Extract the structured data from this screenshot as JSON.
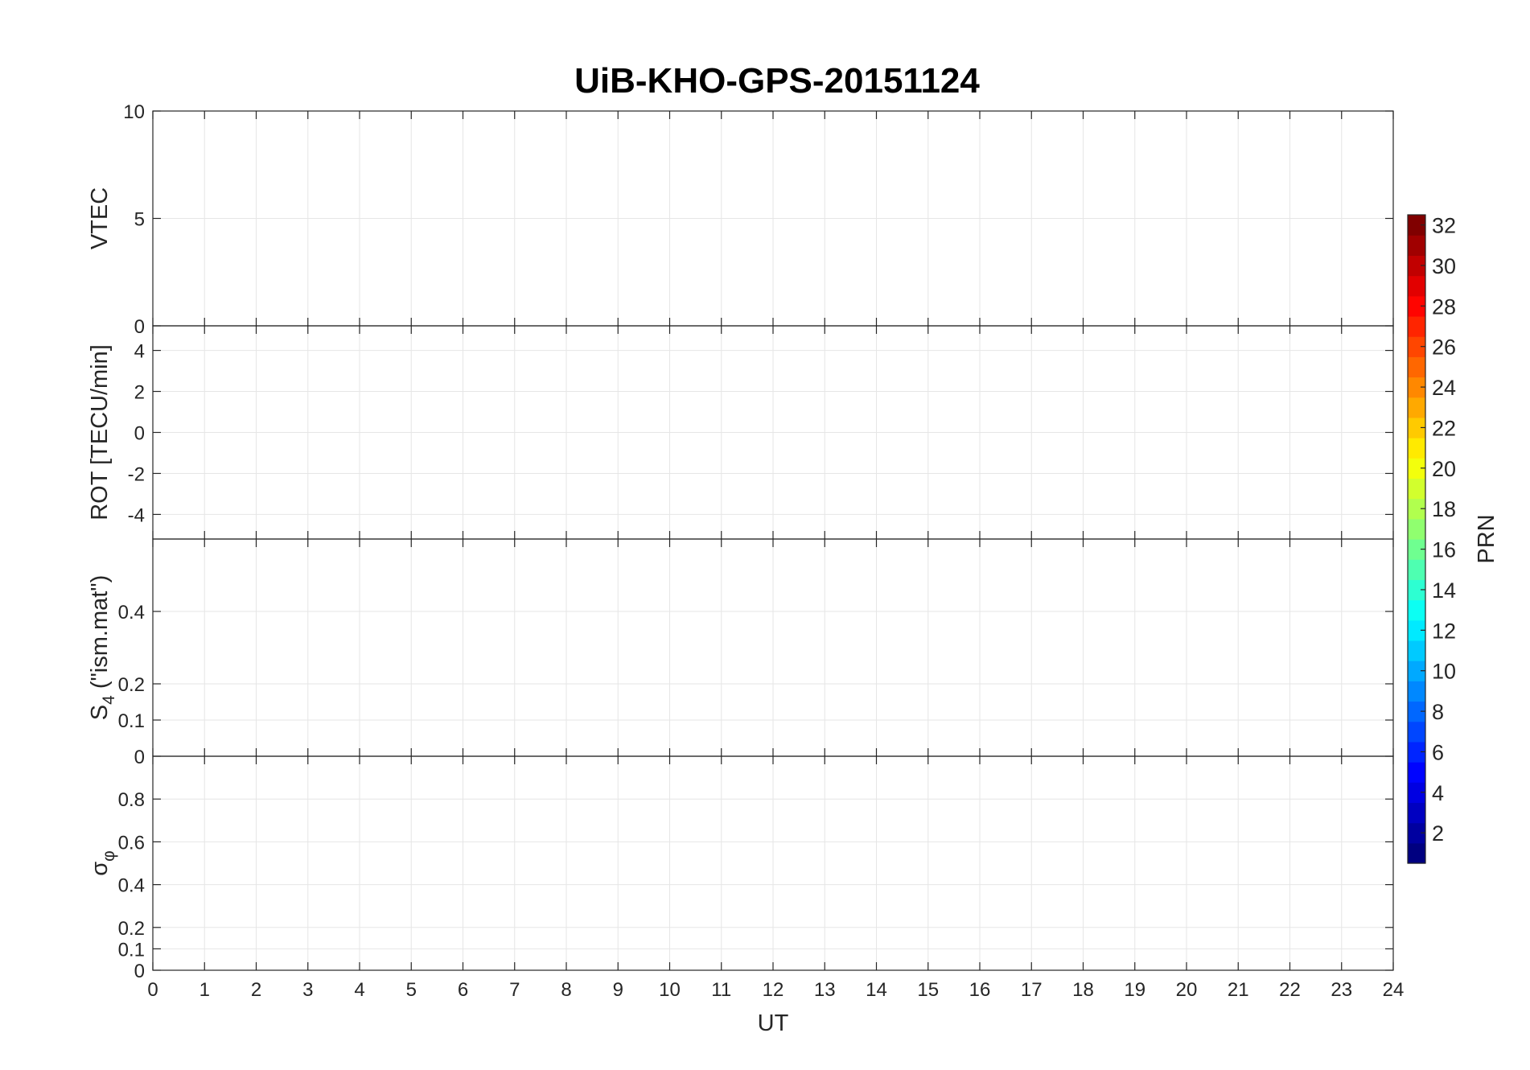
{
  "chart_data": [
    {
      "type": "line",
      "title": "UiB-KHO-GPS-20151124",
      "ylabel": "VTEC",
      "ylim": [
        0,
        10
      ],
      "yticks": [
        0,
        5,
        10
      ],
      "xlim": [
        0,
        24
      ],
      "grid": true
    },
    {
      "type": "line",
      "ylabel": "ROT [TECU/min]",
      "ylim": [
        -5.2,
        5.2
      ],
      "yticks": [
        -4,
        -2,
        0,
        2,
        4
      ],
      "xlim": [
        0,
        24
      ],
      "grid": true
    },
    {
      "type": "line",
      "ylabel_main": "S",
      "ylabel_sub": "4",
      "ylabel_rest": " (\"ism.mat\")",
      "ylim": [
        0,
        0.6
      ],
      "yticks": [
        0,
        0.1,
        0.2,
        0.4
      ],
      "xlim": [
        0,
        24
      ],
      "grid": true
    },
    {
      "type": "line",
      "ylabel_main": "σ",
      "ylabel_sub": "φ",
      "ylim": [
        0,
        1
      ],
      "yticks": [
        0,
        0.1,
        0.2,
        0.4,
        0.6,
        0.8
      ],
      "xlim": [
        0,
        24
      ],
      "xticks": [
        0,
        1,
        2,
        3,
        4,
        5,
        6,
        7,
        8,
        9,
        10,
        11,
        12,
        13,
        14,
        15,
        16,
        17,
        18,
        19,
        20,
        21,
        22,
        23,
        24
      ],
      "xlabel": "UT",
      "grid": true
    }
  ],
  "colorbar": {
    "label": "PRN",
    "range": [
      1,
      32
    ],
    "ticks": [
      2,
      4,
      6,
      8,
      10,
      12,
      14,
      16,
      18,
      20,
      22,
      24,
      26,
      28,
      30,
      32
    ],
    "colormap": "jet"
  }
}
